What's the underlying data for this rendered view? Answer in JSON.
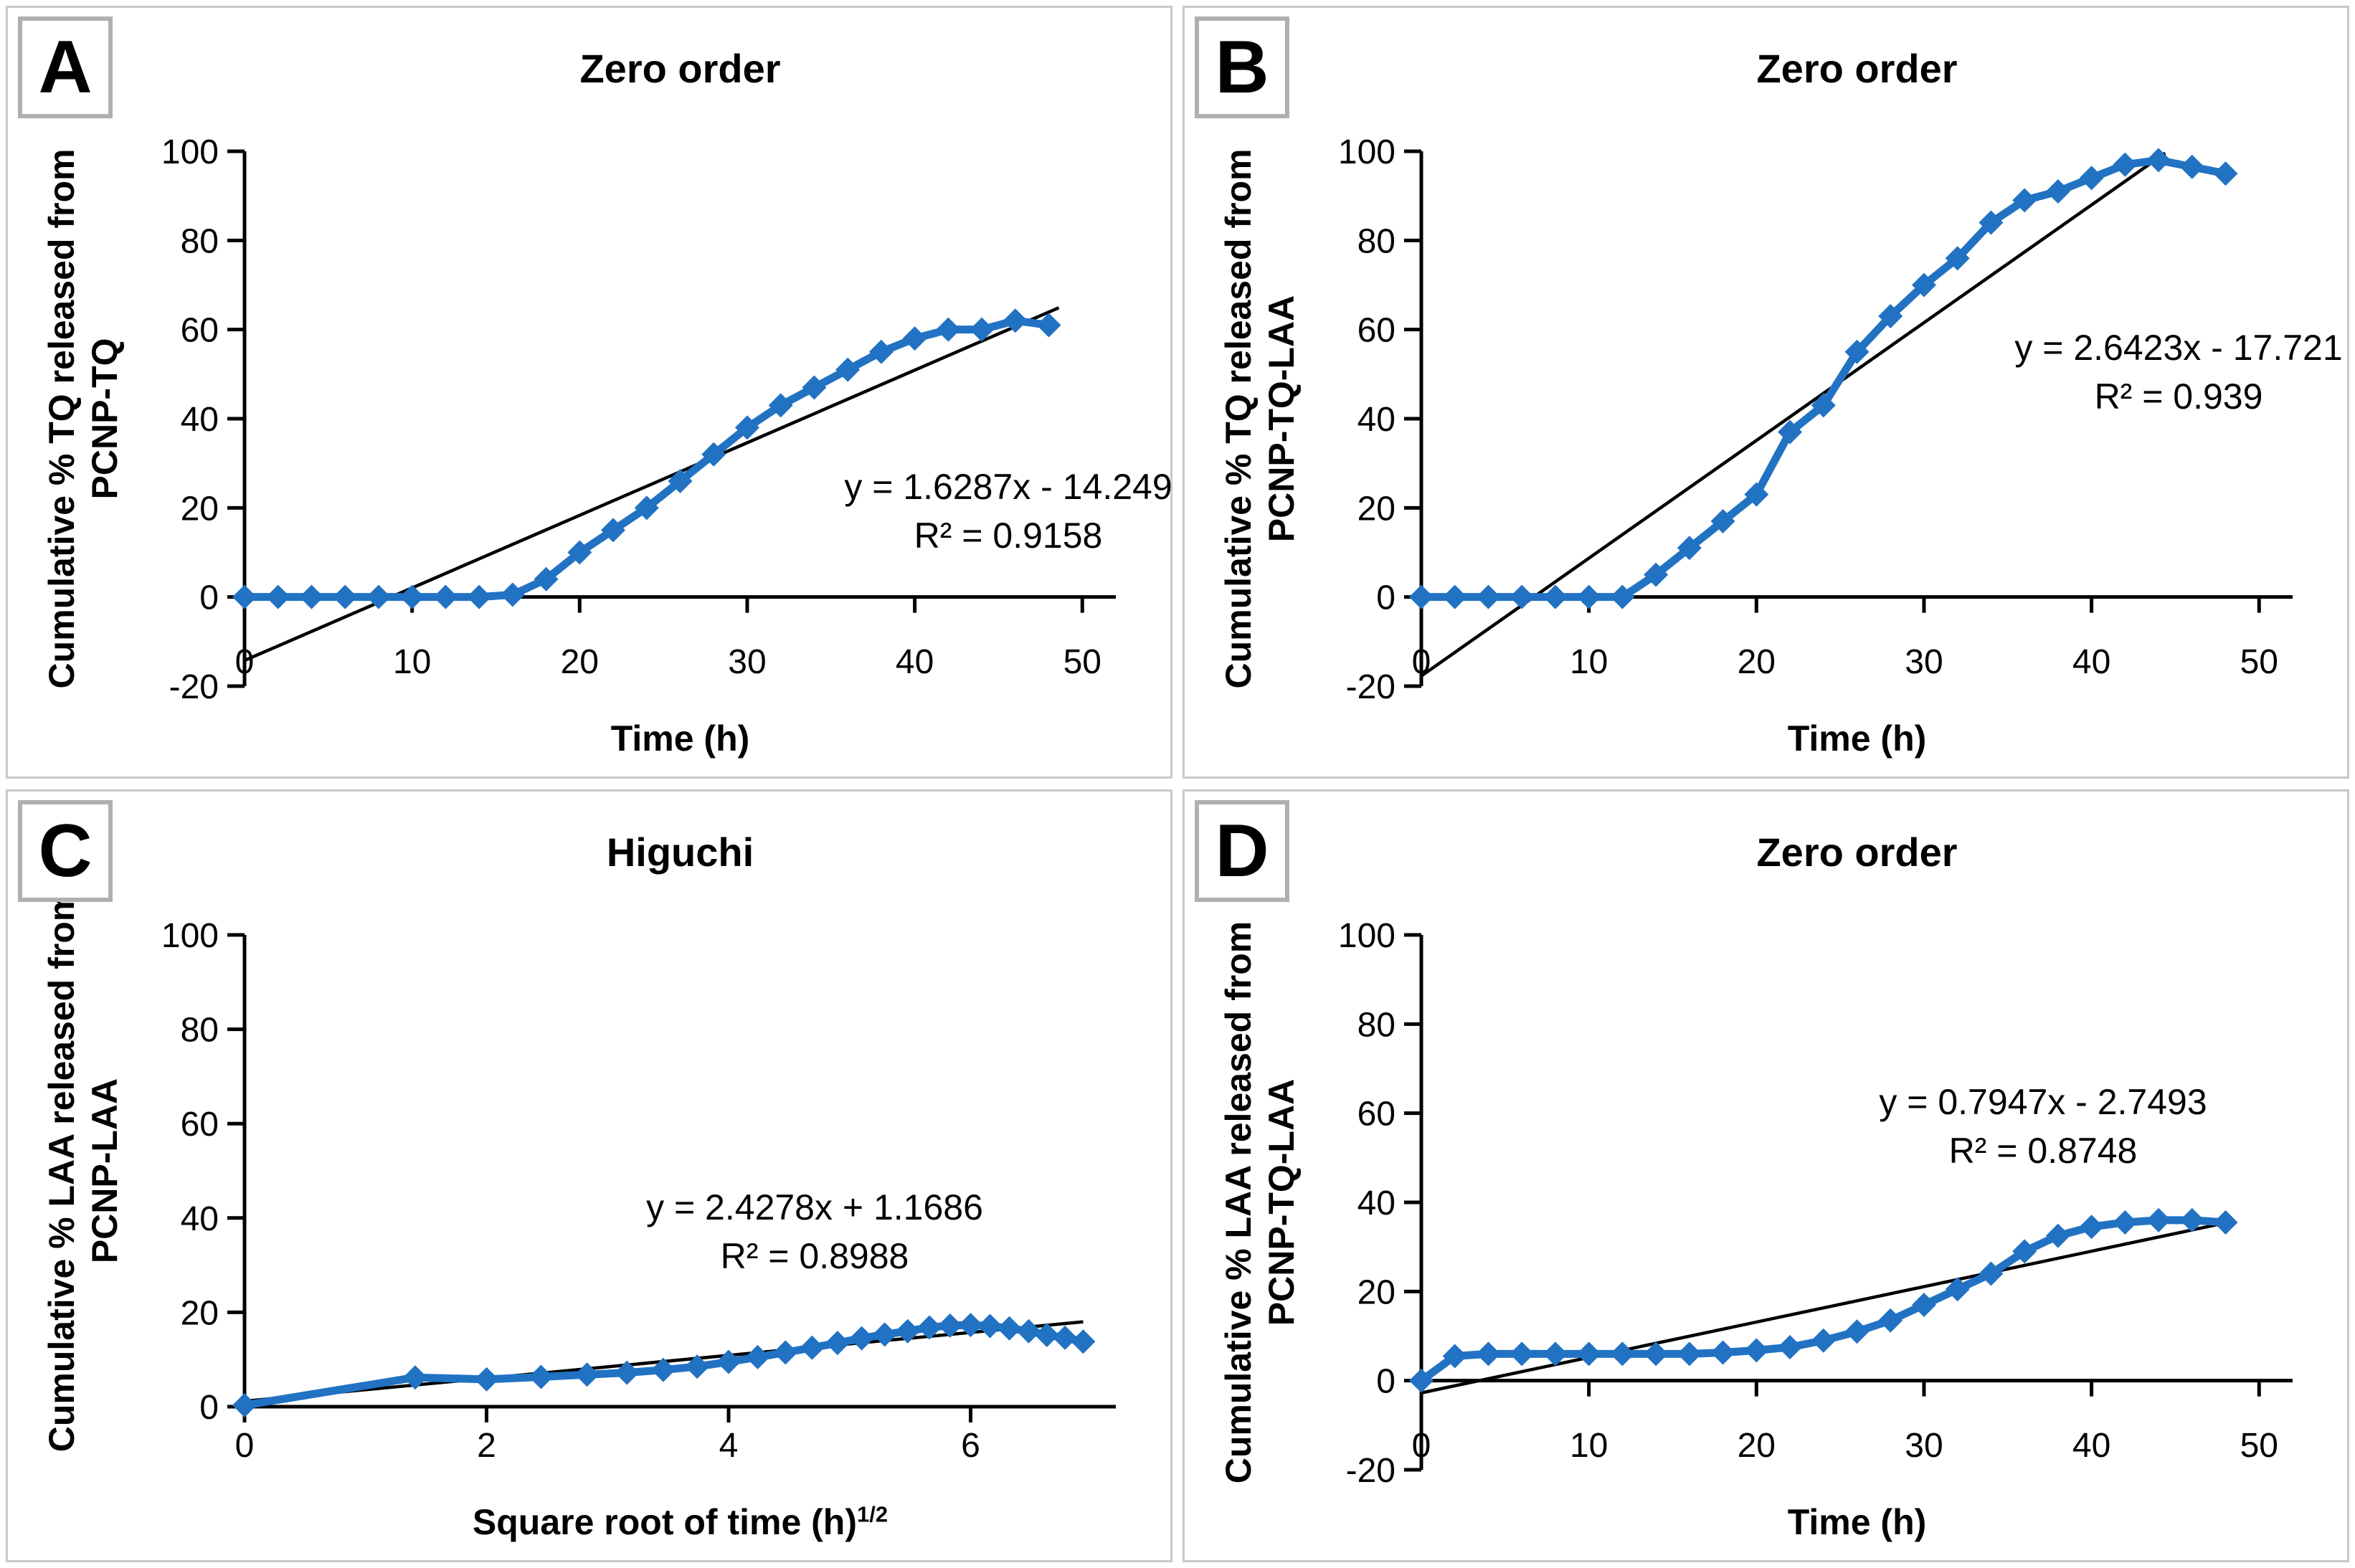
{
  "colors": {
    "series": "#2272c3",
    "trendline": "#000000",
    "axis": "#000000",
    "panel_border": "#c9c9c9",
    "badge_border": "#b0b0b0"
  },
  "panels": [
    {
      "label": "A",
      "title": "Zero order",
      "y_label_1": "Cumulative % TQ released from",
      "y_label_2": "PCNP-TQ",
      "x_label": "Time (h)",
      "x_label_sup": "",
      "equation": "y = 1.6287x - 14.249",
      "r2": "R² = 0.9158"
    },
    {
      "label": "B",
      "title": "Zero order",
      "y_label_1": "Cumulative % TQ released from",
      "y_label_2": "PCNP-TQ-LAA",
      "x_label": "Time (h)",
      "x_label_sup": "",
      "equation": "y = 2.6423x - 17.721",
      "r2": "R² = 0.939"
    },
    {
      "label": "C",
      "title": "Higuchi",
      "y_label_1": "Cumulative % LAA released from",
      "y_label_2": "PCNP-LAA",
      "x_label": "Square root of time (h)",
      "x_label_sup": "1/2",
      "equation": "y = 2.4278x + 1.1686",
      "r2": "R² = 0.8988"
    },
    {
      "label": "D",
      "title": "Zero order",
      "y_label_1": "Cumulative % LAA released from",
      "y_label_2": "PCNP-TQ-LAA",
      "x_label": "Time (h)",
      "x_label_sup": "",
      "equation": "y = 0.7947x - 2.7493",
      "r2": "R² = 0.8748"
    }
  ],
  "chart_data": [
    {
      "id": "A",
      "type": "line",
      "title": "Zero order",
      "xlabel": "Time (h)",
      "ylabel": "Cumulative % TQ released from PCNP-TQ",
      "x": [
        0,
        2,
        4,
        6,
        8,
        10,
        12,
        14,
        16,
        18,
        20,
        22,
        24,
        26,
        28,
        30,
        32,
        34,
        36,
        38,
        40,
        42,
        44,
        46,
        48
      ],
      "y": [
        0,
        0,
        0,
        0,
        0,
        0,
        0,
        0,
        0.5,
        4,
        10,
        15,
        20,
        26,
        32,
        38,
        43,
        47,
        51,
        55,
        58,
        60,
        60,
        62,
        61
      ],
      "trendline": {
        "slope": 1.6287,
        "intercept": -14.249,
        "x_range": [
          0,
          48.6
        ],
        "r2": 0.9158
      },
      "xticks": [
        0,
        10,
        20,
        30,
        40,
        50
      ],
      "yticks": [
        -20,
        0,
        20,
        40,
        60,
        80,
        100
      ],
      "xlim": [
        0,
        52
      ],
      "ylim": [
        -20,
        100
      ],
      "grid": false,
      "legend": "none"
    },
    {
      "id": "B",
      "type": "line",
      "title": "Zero order",
      "xlabel": "Time (h)",
      "ylabel": "Cumulative % TQ released from PCNP-TQ-LAA",
      "x": [
        0,
        2,
        4,
        6,
        8,
        10,
        12,
        14,
        16,
        18,
        20,
        22,
        24,
        26,
        28,
        30,
        32,
        34,
        36,
        38,
        40,
        42,
        44,
        46,
        48
      ],
      "y": [
        0,
        0,
        0,
        0,
        0,
        0,
        0,
        5,
        11,
        17,
        23,
        37,
        43,
        55,
        63,
        70,
        76,
        84,
        89,
        91,
        94,
        97,
        98,
        96.5,
        95
      ],
      "trendline": {
        "slope": 2.6423,
        "intercept": -17.721,
        "x_range": [
          0,
          44.4
        ],
        "r2": 0.939
      },
      "xticks": [
        0,
        10,
        20,
        30,
        40,
        50
      ],
      "yticks": [
        -20,
        0,
        20,
        40,
        60,
        80,
        100
      ],
      "xlim": [
        0,
        52
      ],
      "ylim": [
        -20,
        100
      ],
      "grid": false,
      "legend": "none"
    },
    {
      "id": "C",
      "type": "line",
      "title": "Higuchi",
      "xlabel": "Square root of time (h)1/2",
      "ylabel": "Cumulative % LAA released from PCNP-LAA",
      "x": [
        0,
        1.41,
        2,
        2.45,
        2.83,
        3.16,
        3.46,
        3.74,
        4,
        4.24,
        4.47,
        4.69,
        4.9,
        5.1,
        5.29,
        5.48,
        5.66,
        5.83,
        6,
        6.16,
        6.32,
        6.48,
        6.63,
        6.78,
        6.93
      ],
      "y": [
        0.3,
        6.2,
        5.8,
        6.3,
        6.8,
        7.2,
        7.8,
        8.5,
        9.5,
        10.5,
        11.5,
        12.5,
        13.5,
        14.5,
        15.3,
        16,
        16.8,
        17.2,
        17.3,
        17.1,
        16.6,
        16,
        15.2,
        14.6,
        13.8
      ],
      "trendline": {
        "slope": 2.4278,
        "intercept": 1.1686,
        "x_range": [
          0,
          6.93
        ],
        "r2": 0.8988
      },
      "xticks": [
        0,
        2,
        4,
        6
      ],
      "yticks": [
        0,
        20,
        40,
        60,
        80,
        100
      ],
      "xlim": [
        0,
        7.2
      ],
      "ylim": [
        0,
        100
      ],
      "grid": false,
      "legend": "none"
    },
    {
      "id": "D",
      "type": "line",
      "title": "Zero order",
      "xlabel": "Time (h)",
      "ylabel": "Cumulative % LAA released from PCNP-TQ-LAA",
      "x": [
        0,
        2,
        4,
        6,
        8,
        10,
        12,
        14,
        16,
        18,
        20,
        22,
        24,
        26,
        28,
        30,
        32,
        34,
        36,
        38,
        40,
        42,
        44,
        46,
        48
      ],
      "y": [
        0,
        5.5,
        6,
        6,
        6,
        6,
        6,
        6,
        6,
        6.3,
        6.8,
        7.5,
        9,
        11,
        13.5,
        17,
        20.5,
        24,
        29,
        32.5,
        34.5,
        35.5,
        36,
        36,
        35.5
      ],
      "trendline": {
        "slope": 0.7947,
        "intercept": -2.7493,
        "x_range": [
          0,
          48.2
        ],
        "r2": 0.8748
      },
      "xticks": [
        0,
        10,
        20,
        30,
        40,
        50
      ],
      "yticks": [
        -20,
        0,
        20,
        40,
        60,
        80,
        100
      ],
      "xlim": [
        0,
        52
      ],
      "ylim": [
        -20,
        100
      ],
      "grid": false,
      "legend": "none"
    }
  ]
}
